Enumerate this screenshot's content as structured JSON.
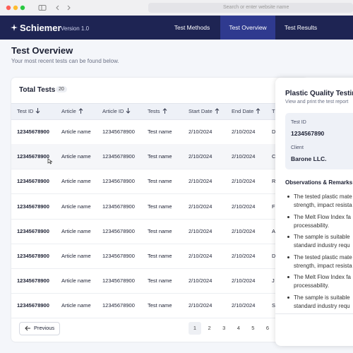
{
  "browser": {
    "address": "Search or enter website name"
  },
  "nav": {
    "logo": "Schiemer",
    "version": "Version 1.0",
    "tabs": [
      "Test Methods",
      "Test Overview",
      "Test Results"
    ]
  },
  "header": {
    "title": "Test Overview",
    "subtitle": "Your most recent tests can be found below."
  },
  "table": {
    "title": "Total Tests",
    "count": 20,
    "columns": [
      {
        "label": "Test ID",
        "sort": "down"
      },
      {
        "label": "Article",
        "sort": "up"
      },
      {
        "label": "Article ID",
        "sort": "down"
      },
      {
        "label": "Tests",
        "sort": "up"
      },
      {
        "label": "Start Date",
        "sort": "up"
      },
      {
        "label": "End Date",
        "sort": "up"
      },
      {
        "label": "T"
      }
    ],
    "rows": [
      [
        "12345678900",
        "Article name",
        "12345678900",
        "Test name",
        "2/10/2024",
        "2/10/2024",
        "D"
      ],
      [
        "12345678900",
        "Article name",
        "12345678900",
        "Test name",
        "2/10/2024",
        "2/10/2024",
        "C"
      ],
      [
        "12345678900",
        "Article name",
        "12345678900",
        "Test name",
        "2/10/2024",
        "2/10/2024",
        "R"
      ],
      [
        "12345678900",
        "Article name",
        "12345678900",
        "Test name",
        "2/10/2024",
        "2/10/2024",
        "F"
      ],
      [
        "12345678900",
        "Article name",
        "12345678900",
        "Test name",
        "2/10/2024",
        "2/10/2024",
        "A"
      ],
      [
        "12345678900",
        "Article name",
        "12345678900",
        "Test name",
        "2/10/2024",
        "2/10/2024",
        "D"
      ],
      [
        "12345678900",
        "Article name",
        "12345678900",
        "Test name",
        "2/10/2024",
        "2/10/2024",
        "J"
      ],
      [
        "12345678900",
        "Article name",
        "12345678900",
        "Test name",
        "2/10/2024",
        "2/10/2024",
        "S"
      ]
    ]
  },
  "pagination": {
    "previous": "Previous",
    "pages": [
      1,
      2,
      3,
      4,
      5,
      6
    ]
  },
  "panel": {
    "title": "Plastic Quality Testin",
    "subtitle": "View and print the test report",
    "fields": [
      {
        "label": "Test ID",
        "value": "1234567890"
      },
      {
        "label": "Client",
        "value": "Barone LLC."
      }
    ],
    "section": "Observations & Remarks",
    "bullets": [
      [
        "The tested plastic mate",
        "strength, impact resista"
      ],
      [
        "The Melt Flow Index fa",
        "processability."
      ],
      [
        "The sample is suitable",
        "standard industry requ"
      ],
      [
        "The tested plastic mate",
        "strength, impact resista"
      ],
      [
        "The Melt Flow Index fa",
        "processability."
      ],
      [
        "The sample is suitable",
        "standard industry requ"
      ]
    ]
  }
}
